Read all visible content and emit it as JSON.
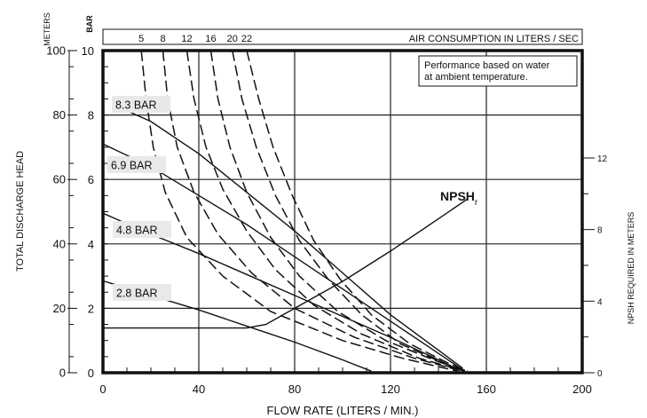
{
  "chart_data": {
    "type": "line",
    "x_axis": {
      "label": "FLOW RATE (LITERS / MIN.)",
      "range": [
        0,
        200
      ],
      "ticks": [
        0,
        40,
        80,
        120,
        160,
        200
      ],
      "grid": [
        0,
        40,
        80,
        120,
        160,
        200
      ]
    },
    "y_axis_bar": {
      "unit": "BAR",
      "range": [
        0,
        10
      ],
      "ticks": [
        0,
        2,
        4,
        6,
        8,
        10
      ],
      "grid": [
        0,
        2,
        4,
        6,
        8,
        10
      ]
    },
    "y_axis_meters": {
      "unit": "METERS",
      "label": "TOTAL DISCHARGE HEAD",
      "range": [
        0,
        100
      ],
      "ticks": [
        0,
        20,
        40,
        60,
        80,
        100
      ]
    },
    "y_axis_right": {
      "label": "NPSH REQUIRED IN METERS",
      "range": [
        0,
        18
      ],
      "ticks": [
        0,
        4,
        8,
        12
      ]
    },
    "top_axis": {
      "label": "AIR CONSUMPTION IN LITERS / SEC",
      "ticks": [
        "5",
        "8",
        "12",
        "16",
        "20",
        "22"
      ]
    },
    "note": [
      "Performance based on water",
      "at ambient temperature."
    ],
    "pressure_curves": [
      {
        "name": "8.3 BAR",
        "points": [
          [
            5,
            8.3
          ],
          [
            20,
            7.8
          ],
          [
            40,
            6.8
          ],
          [
            60,
            5.6
          ],
          [
            80,
            4.4
          ],
          [
            100,
            3.1
          ],
          [
            120,
            1.8
          ],
          [
            140,
            0.7
          ],
          [
            150,
            0.15
          ]
        ]
      },
      {
        "name": "6.9 BAR",
        "points": [
          [
            0,
            7.1
          ],
          [
            20,
            6.4
          ],
          [
            40,
            5.5
          ],
          [
            60,
            4.6
          ],
          [
            80,
            3.6
          ],
          [
            100,
            2.6
          ],
          [
            120,
            1.6
          ],
          [
            140,
            0.6
          ],
          [
            150,
            0.1
          ]
        ]
      },
      {
        "name": "4.8 BAR",
        "points": [
          [
            0,
            4.95
          ],
          [
            20,
            4.3
          ],
          [
            40,
            3.7
          ],
          [
            60,
            3.05
          ],
          [
            80,
            2.4
          ],
          [
            100,
            1.75
          ],
          [
            120,
            1.1
          ],
          [
            140,
            0.4
          ],
          [
            148,
            0.1
          ]
        ]
      },
      {
        "name": "2.8 BAR",
        "points": [
          [
            0,
            2.85
          ],
          [
            20,
            2.4
          ],
          [
            40,
            1.95
          ],
          [
            60,
            1.45
          ],
          [
            80,
            0.95
          ],
          [
            100,
            0.4
          ],
          [
            112,
            0.05
          ]
        ]
      }
    ],
    "air_curves": [
      {
        "name": "5",
        "points": [
          [
            16,
            10
          ],
          [
            18,
            8.5
          ],
          [
            21,
            7.0
          ],
          [
            26,
            5.6
          ],
          [
            35,
            4.2
          ],
          [
            50,
            3.0
          ],
          [
            70,
            1.9
          ],
          [
            100,
            1.0
          ],
          [
            125,
            0.45
          ],
          [
            148,
            0.05
          ]
        ]
      },
      {
        "name": "8",
        "points": [
          [
            25,
            10
          ],
          [
            27,
            8.5
          ],
          [
            31,
            7.0
          ],
          [
            38,
            5.6
          ],
          [
            48,
            4.3
          ],
          [
            62,
            3.1
          ],
          [
            80,
            2.0
          ],
          [
            105,
            1.1
          ],
          [
            130,
            0.45
          ],
          [
            150,
            0.05
          ]
        ]
      },
      {
        "name": "12",
        "points": [
          [
            35,
            10
          ],
          [
            38,
            8.5
          ],
          [
            43,
            7.0
          ],
          [
            50,
            5.7
          ],
          [
            60,
            4.4
          ],
          [
            72,
            3.2
          ],
          [
            88,
            2.1
          ],
          [
            108,
            1.2
          ],
          [
            132,
            0.45
          ],
          [
            151,
            0.05
          ]
        ]
      },
      {
        "name": "16",
        "points": [
          [
            45,
            10
          ],
          [
            48,
            8.5
          ],
          [
            53,
            7.0
          ],
          [
            60,
            5.6
          ],
          [
            70,
            4.2
          ],
          [
            82,
            3.0
          ],
          [
            98,
            1.9
          ],
          [
            118,
            1.0
          ],
          [
            138,
            0.4
          ],
          [
            151,
            0.05
          ]
        ]
      },
      {
        "name": "20",
        "points": [
          [
            54,
            10
          ],
          [
            58,
            8.5
          ],
          [
            64,
            7.0
          ],
          [
            72,
            5.5
          ],
          [
            82,
            4.1
          ],
          [
            94,
            2.9
          ],
          [
            108,
            1.8
          ],
          [
            124,
            0.9
          ],
          [
            142,
            0.3
          ],
          [
            152,
            0.05
          ]
        ]
      },
      {
        "name": "22",
        "points": [
          [
            60,
            10
          ],
          [
            65,
            8.5
          ],
          [
            71,
            7.0
          ],
          [
            79,
            5.5
          ],
          [
            88,
            4.1
          ],
          [
            99,
            2.9
          ],
          [
            112,
            1.8
          ],
          [
            128,
            0.9
          ],
          [
            144,
            0.3
          ],
          [
            152,
            0.05
          ]
        ]
      }
    ],
    "npsh_curve": {
      "name": "NPSH",
      "subscript": "r",
      "points": [
        [
          0,
          2.5
        ],
        [
          60,
          2.5
        ],
        [
          68,
          2.7
        ],
        [
          80,
          3.6
        ],
        [
          100,
          5.1
        ],
        [
          120,
          6.8
        ],
        [
          140,
          8.6
        ],
        [
          152,
          9.7
        ]
      ]
    }
  }
}
